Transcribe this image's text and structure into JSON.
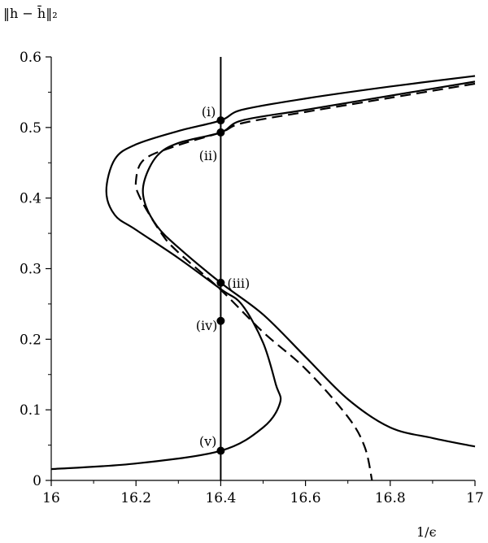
{
  "chart_data": {
    "type": "line",
    "title": "",
    "xlabel": "1/ϵ",
    "ylabel": "‖h − h̄‖₂",
    "xlim": [
      16.0,
      17.0
    ],
    "ylim": [
      0.0,
      0.6
    ],
    "grid": false,
    "x_ticks": [
      "16",
      "16.2",
      "16.4",
      "16.6",
      "16.8",
      "17"
    ],
    "y_ticks": [
      "0",
      "0.1",
      "0.2",
      "0.3",
      "0.4",
      "0.5",
      "0.6"
    ],
    "series": [
      {
        "style": "solid",
        "points": [
          [
            17.0,
            0.573
          ],
          [
            16.8,
            0.558
          ],
          [
            16.6,
            0.541
          ],
          [
            16.45,
            0.525
          ],
          [
            16.4,
            0.51
          ],
          [
            16.3,
            0.495
          ],
          [
            16.2,
            0.476
          ],
          [
            16.15,
            0.455
          ],
          [
            16.13,
            0.41
          ],
          [
            16.15,
            0.376
          ],
          [
            16.2,
            0.355
          ],
          [
            16.3,
            0.315
          ],
          [
            16.4,
            0.271
          ],
          [
            16.45,
            0.249
          ],
          [
            16.5,
            0.195
          ],
          [
            16.53,
            0.136
          ],
          [
            16.54,
            0.11
          ],
          [
            16.5,
            0.075
          ],
          [
            16.4,
            0.042
          ],
          [
            16.2,
            0.024
          ],
          [
            16.0,
            0.016
          ]
        ]
      },
      {
        "style": "solid",
        "points": [
          [
            17.0,
            0.565
          ],
          [
            16.8,
            0.545
          ],
          [
            16.6,
            0.525
          ],
          [
            16.45,
            0.51
          ],
          [
            16.4,
            0.493
          ],
          [
            16.3,
            0.478
          ],
          [
            16.25,
            0.46
          ],
          [
            16.22,
            0.425
          ],
          [
            16.22,
            0.395
          ],
          [
            16.25,
            0.36
          ],
          [
            16.3,
            0.33
          ],
          [
            16.4,
            0.28
          ],
          [
            16.5,
            0.235
          ],
          [
            16.6,
            0.175
          ],
          [
            16.7,
            0.115
          ],
          [
            16.8,
            0.075
          ],
          [
            16.9,
            0.06
          ],
          [
            17.0,
            0.048
          ]
        ]
      },
      {
        "style": "dashed",
        "points": [
          [
            17.0,
            0.562
          ],
          [
            16.8,
            0.542
          ],
          [
            16.6,
            0.522
          ],
          [
            16.45,
            0.506
          ],
          [
            16.4,
            0.493
          ],
          [
            16.3,
            0.475
          ],
          [
            16.22,
            0.455
          ],
          [
            16.2,
            0.425
          ],
          [
            16.21,
            0.4
          ],
          [
            16.26,
            0.35
          ],
          [
            16.3,
            0.323
          ],
          [
            16.4,
            0.27
          ],
          [
            16.5,
            0.21
          ],
          [
            16.6,
            0.158
          ],
          [
            16.7,
            0.09
          ],
          [
            16.74,
            0.047
          ],
          [
            16.757,
            0.0
          ]
        ]
      }
    ],
    "vertical_line": {
      "x": 16.4
    },
    "marked_points": [
      {
        "label": "(i)",
        "x": 16.4,
        "y": 0.51
      },
      {
        "label": "(ii)",
        "x": 16.4,
        "y": 0.493
      },
      {
        "label": "(iii)",
        "x": 16.4,
        "y": 0.28
      },
      {
        "label": "(iv)",
        "x": 16.4,
        "y": 0.226
      },
      {
        "label": "(v)",
        "x": 16.4,
        "y": 0.042
      }
    ]
  }
}
